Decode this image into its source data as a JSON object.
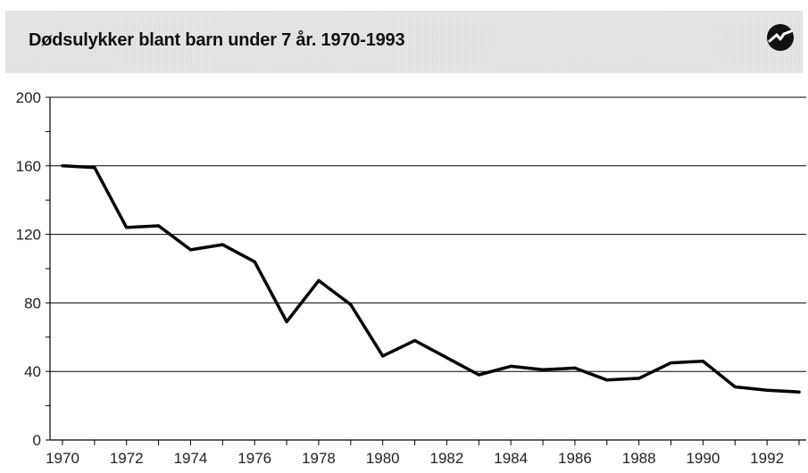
{
  "header": {
    "title": "Dødsulykker blant barn under 7 år. 1970-1993",
    "logo_icon": "ssb-logo-icon"
  },
  "chart_data": {
    "type": "line",
    "title": "Dødsulykker blant barn under 7 år. 1970-1993",
    "xlabel": "",
    "ylabel": "",
    "xlim": [
      1970,
      1993
    ],
    "ylim": [
      0,
      200
    ],
    "yticks": [
      0,
      40,
      80,
      120,
      160,
      200
    ],
    "xticks": [
      1970,
      1972,
      1974,
      1976,
      1978,
      1980,
      1982,
      1984,
      1986,
      1988,
      1990,
      1992
    ],
    "grid": true,
    "series": [
      {
        "x": [
          1970,
          1971,
          1972,
          1973,
          1974,
          1975,
          1976,
          1977,
          1978,
          1979,
          1980,
          1981,
          1982,
          1983,
          1984,
          1985,
          1986,
          1987,
          1988,
          1989,
          1990,
          1991,
          1992,
          1993
        ],
        "values": [
          160,
          159,
          124,
          125,
          111,
          114,
          104,
          69,
          93,
          79,
          49,
          58,
          48,
          38,
          43,
          41,
          42,
          35,
          36,
          45,
          46,
          31,
          29,
          28
        ],
        "color": "#000000"
      }
    ]
  }
}
